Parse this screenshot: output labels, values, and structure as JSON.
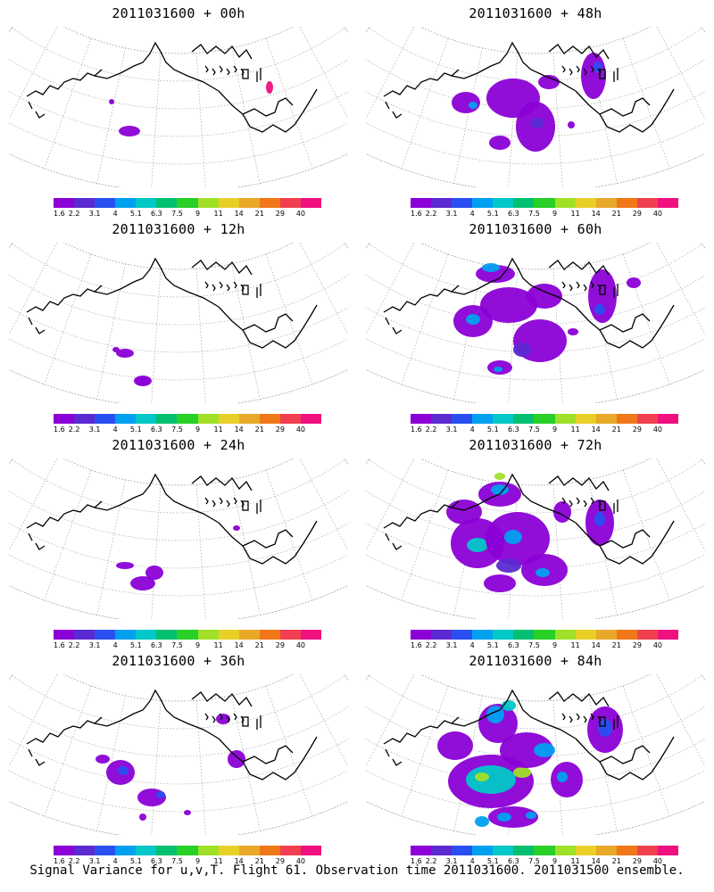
{
  "panels": [
    {
      "title": "2011031600 + 00h"
    },
    {
      "title": "2011031600 + 48h"
    },
    {
      "title": "2011031600 + 12h"
    },
    {
      "title": "2011031600 + 60h"
    },
    {
      "title": "2011031600 + 24h"
    },
    {
      "title": "2011031600 + 72h"
    },
    {
      "title": "2011031600 + 36h"
    },
    {
      "title": "2011031600 + 84h"
    }
  ],
  "colorbar": {
    "labels": [
      "1.6",
      "2.2",
      "3.1",
      "4",
      "5.1",
      "6.3",
      "7.5",
      "9",
      "11",
      "14",
      "21",
      "29",
      "40"
    ],
    "colors": [
      "#8b00d6",
      "#5c2ad1",
      "#2a4ff0",
      "#00a0f0",
      "#00c8c8",
      "#00c070",
      "#28d028",
      "#a0e028",
      "#e8d028",
      "#e8a828",
      "#f07818",
      "#f04050",
      "#f01080"
    ]
  },
  "footer": "Signal Variance for u,v,T. Flight 61. Observation time 2011031600. 2011031500 ensemble."
}
